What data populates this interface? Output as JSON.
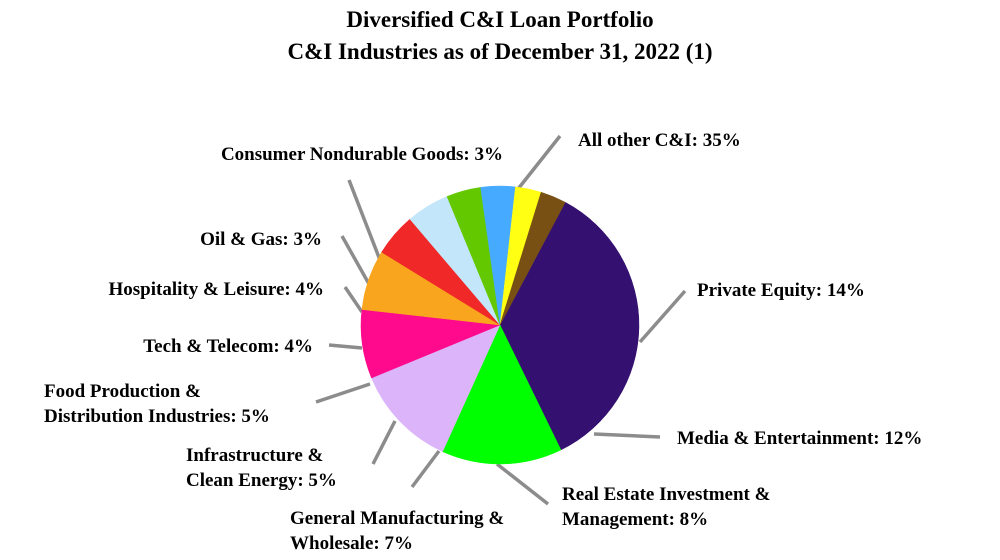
{
  "chart_data": {
    "type": "pie",
    "title": "Diversified C&I Loan Portfolio",
    "subtitle": "C&I Industries as of December 31, 2022 (1)",
    "slices": [
      {
        "lines": [
          "All other C&I: 35%"
        ],
        "value": 35,
        "color": "#341070"
      },
      {
        "lines": [
          "Private Equity: 14%"
        ],
        "value": 14,
        "color": "#00ff00"
      },
      {
        "lines": [
          "Media & Entertainment: 12%"
        ],
        "value": 12,
        "color": "#dcb4fa"
      },
      {
        "lines": [
          "Real Estate Investment &",
          "Management: 8%"
        ],
        "value": 8,
        "color": "#ff0a8c"
      },
      {
        "lines": [
          "General Manufacturing &",
          "Wholesale: 7%"
        ],
        "value": 7,
        "color": "#faa51e"
      },
      {
        "lines": [
          "Infrastructure &",
          "Clean Energy: 5%"
        ],
        "value": 5,
        "color": "#f02828"
      },
      {
        "lines": [
          "Food Production &",
          "Distribution Industries: 5%"
        ],
        "value": 5,
        "color": "#c3e6fa"
      },
      {
        "lines": [
          "Tech & Telecom: 4%"
        ],
        "value": 4,
        "color": "#64c800"
      },
      {
        "lines": [
          "Hospitality & Leisure: 4%"
        ],
        "value": 4,
        "color": "#46aaff"
      },
      {
        "lines": [
          "Oil & Gas: 3%"
        ],
        "value": 3,
        "color": "#ffff14"
      },
      {
        "lines": [
          "Consumer Nondurable Goods: 3%"
        ],
        "value": 3,
        "color": "#785014"
      }
    ]
  }
}
